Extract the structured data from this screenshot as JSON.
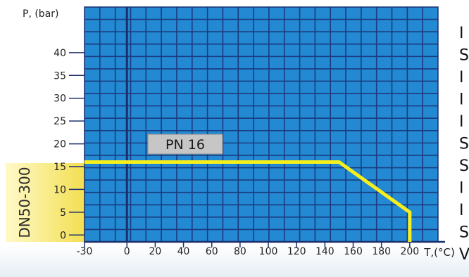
{
  "chart_data": {
    "type": "line",
    "title": "",
    "ylabel": "P, (bar)",
    "xlabel": "T,(°C)",
    "x_ticks": [
      -30,
      0,
      20,
      40,
      60,
      80,
      100,
      120,
      140,
      160,
      180,
      200
    ],
    "x_tick_labels": [
      "-30",
      "0",
      "20",
      "40",
      "60",
      "80",
      "100",
      "120",
      "140",
      "160",
      "180",
      "200"
    ],
    "y_ticks": [
      0,
      5,
      10,
      15,
      20,
      25,
      30,
      35,
      40
    ],
    "y_tick_labels": [
      "0",
      "5",
      "10",
      "15",
      "20",
      "25",
      "30",
      "35",
      "40"
    ],
    "xlim": [
      -30,
      220
    ],
    "ylim": [
      -1.5,
      50
    ],
    "grid": true,
    "series": [
      {
        "name": "PN 16",
        "x": [
          -30,
          150,
          200,
          200
        ],
        "y": [
          16,
          16,
          5,
          -1.5
        ]
      }
    ],
    "annotations": {
      "series_label": "PN 16",
      "range_label": "DN50-300"
    },
    "right_edge_letters": [
      "I",
      "S",
      "I",
      "I",
      "I",
      "S",
      "S",
      "I",
      "I",
      "S",
      "V"
    ]
  },
  "colors": {
    "plot_bg": "#2389d2",
    "grid": "#1b3b80",
    "line": "#f6ef1d",
    "label_box": "#c6c6c6",
    "axis": "#1a2f6e",
    "text": "#222222",
    "band_light": "#fff9c8",
    "band_dark": "#f3df52"
  }
}
